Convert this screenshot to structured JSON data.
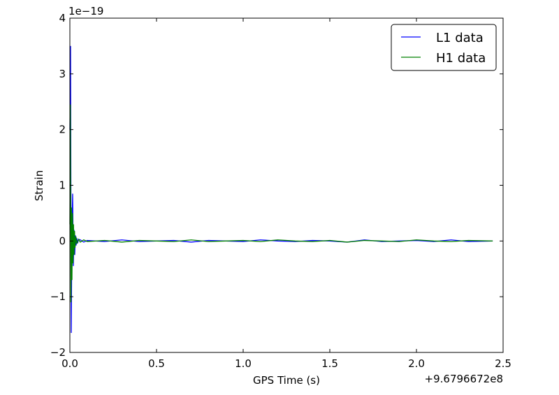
{
  "chart_data": {
    "type": "line",
    "title": "",
    "xlabel": "GPS Time (s)",
    "ylabel": "Strain",
    "x_offset_label": "+9.6796672e8",
    "y_scale_label": "1e−19",
    "xlim": [
      0.0,
      2.5
    ],
    "ylim": [
      -2,
      4
    ],
    "x_ticks": [
      0.0,
      0.5,
      1.0,
      1.5,
      2.0,
      2.5
    ],
    "x_tick_labels": [
      "0.0",
      "0.5",
      "1.0",
      "1.5",
      "2.0",
      "2.5"
    ],
    "y_ticks": [
      -2,
      -1,
      0,
      1,
      2,
      3,
      4
    ],
    "y_tick_labels": [
      "−2",
      "−1",
      "0",
      "1",
      "2",
      "3",
      "4"
    ],
    "grid": false,
    "legend_position": "top-right",
    "series": [
      {
        "name": "L1 data",
        "color": "#0000ff",
        "x": [
          0.0,
          0.004,
          0.008,
          0.012,
          0.016,
          0.02,
          0.024,
          0.028,
          0.032,
          0.036,
          0.04,
          0.045,
          0.05,
          0.06,
          0.08,
          0.1,
          0.2,
          0.3,
          0.4,
          0.5,
          0.6,
          0.7,
          0.8,
          0.9,
          1.0,
          1.1,
          1.2,
          1.3,
          1.4,
          1.5,
          1.6,
          1.7,
          1.8,
          1.9,
          2.0,
          2.1,
          2.2,
          2.3,
          2.44
        ],
        "y": [
          2.0,
          3.5,
          -1.65,
          0.3,
          0.85,
          -0.45,
          0.2,
          -0.25,
          0.1,
          -0.08,
          0.05,
          -0.04,
          0.03,
          0.02,
          -0.02,
          0.01,
          -0.01,
          0.02,
          -0.01,
          0.0,
          0.01,
          -0.02,
          0.01,
          0.0,
          -0.01,
          0.02,
          0.0,
          -0.01,
          0.01,
          0.0,
          -0.02,
          0.02,
          -0.01,
          0.0,
          0.01,
          -0.01,
          0.02,
          -0.01,
          0.0
        ]
      },
      {
        "name": "H1 data",
        "color": "#008000",
        "x": [
          0.0,
          0.003,
          0.006,
          0.009,
          0.012,
          0.015,
          0.018,
          0.021,
          0.024,
          0.027,
          0.03,
          0.035,
          0.04,
          0.05,
          0.06,
          0.08,
          0.1,
          0.2,
          0.3,
          0.4,
          0.5,
          0.6,
          0.7,
          0.8,
          0.9,
          1.0,
          1.1,
          1.2,
          1.3,
          1.4,
          1.5,
          1.6,
          1.7,
          1.8,
          1.9,
          2.0,
          2.1,
          2.2,
          2.3,
          2.44
        ],
        "y": [
          0.3,
          2.45,
          -1.1,
          0.6,
          -0.7,
          0.5,
          -0.4,
          0.3,
          -0.25,
          0.18,
          -0.12,
          0.08,
          -0.05,
          0.03,
          -0.02,
          0.02,
          -0.01,
          0.01,
          -0.02,
          0.01,
          0.0,
          -0.01,
          0.02,
          -0.01,
          0.0,
          0.01,
          -0.01,
          0.02,
          0.0,
          -0.01,
          0.01,
          -0.02,
          0.01,
          0.0,
          -0.01,
          0.02,
          0.0,
          -0.01,
          0.01,
          0.0
        ]
      }
    ]
  }
}
